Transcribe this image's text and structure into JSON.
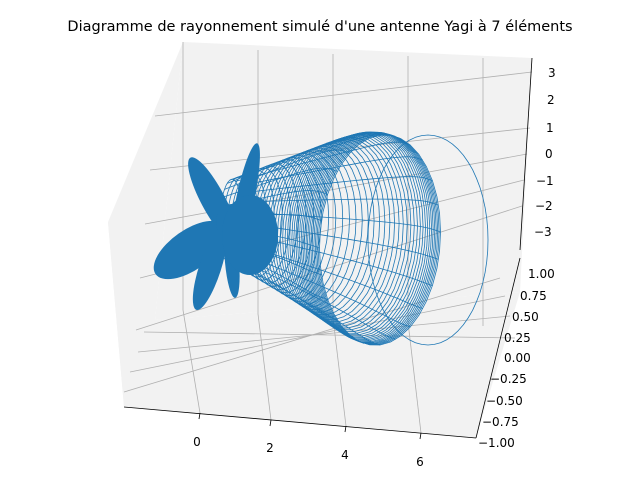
{
  "chart_data": {
    "type": "surface3d",
    "title": "Diagramme de rayonnement simulé d'une antenne Yagi à 7 éléments",
    "xlabel": "",
    "ylabel": "",
    "zlabel": "",
    "x_ticks": [
      "0",
      "2",
      "4",
      "6"
    ],
    "y_ticks": [
      "1.00",
      "0.75",
      "0.50",
      "0.25",
      "0.00",
      "−0.25",
      "−0.50",
      "−0.75",
      "−1.00"
    ],
    "z_ticks": [
      "3",
      "2",
      "1",
      "0",
      "−1",
      "−2",
      "−3"
    ],
    "x_range": [
      -1.8,
      7.5
    ],
    "y_range": [
      -1.05,
      1.05
    ],
    "z_range": [
      -3.6,
      3.3
    ],
    "grid": true,
    "surface_color": "#1f77b4",
    "pane_color": "#f2f2f2"
  }
}
